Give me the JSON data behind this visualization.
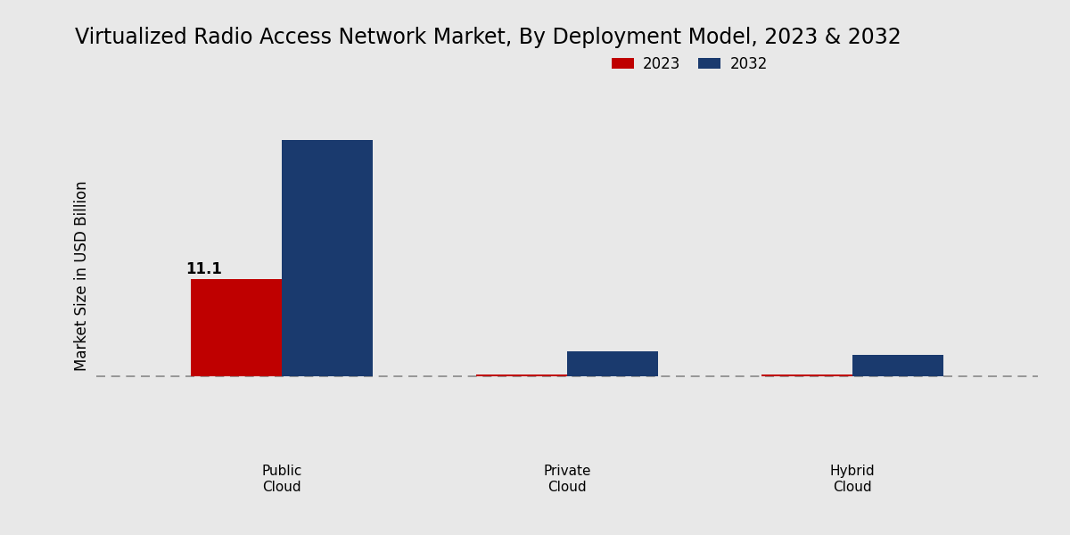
{
  "title": "Virtualized Radio Access Network Market, By Deployment Model, 2023 & 2032",
  "ylabel": "Market Size in USD Billion",
  "categories": [
    "Public\nCloud",
    "Private\nCloud",
    "Hybrid\nCloud"
  ],
  "values_2023": [
    11.1,
    0.18,
    0.18
  ],
  "values_2032": [
    27.0,
    2.8,
    2.4
  ],
  "color_2023": "#bf0000",
  "color_2032": "#1a3a6e",
  "legend_labels": [
    "2023",
    "2032"
  ],
  "bar_annotation": "11.1",
  "bar_width": 0.32,
  "background_color_light": "#e8e8e8",
  "background_color_dark": "#d0d0d0",
  "title_fontsize": 17,
  "ylabel_fontsize": 12,
  "tick_fontsize": 11,
  "legend_fontsize": 12,
  "annotation_fontsize": 12
}
